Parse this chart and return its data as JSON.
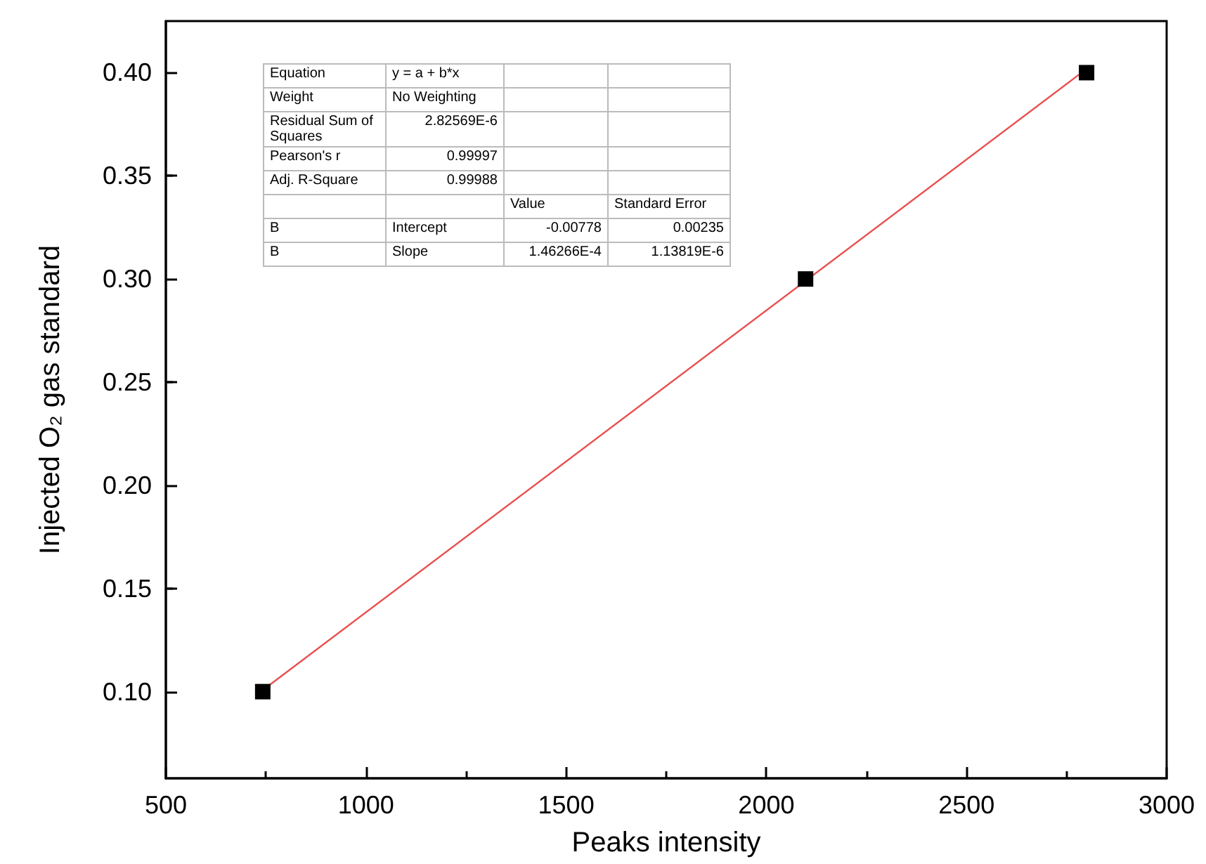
{
  "chart_data": {
    "type": "scatter",
    "xlabel": "Peaks intensity",
    "ylabel": "Injected O₂ gas standard",
    "x": [
      742,
      2098,
      2800
    ],
    "xlim": [
      500,
      3000
    ],
    "xticks": [
      500,
      1000,
      1500,
      2000,
      2500,
      3000
    ],
    "ylim": [
      0.058,
      0.425
    ],
    "yticks": [
      {
        "value": 0.1,
        "label": "0.10"
      },
      {
        "value": 0.15,
        "label": "0.15"
      },
      {
        "value": 0.2,
        "label": "0.20"
      },
      {
        "value": 0.25,
        "label": "0.25"
      },
      {
        "value": 0.3,
        "label": "0.30"
      },
      {
        "value": 0.35,
        "label": "0.35"
      },
      {
        "value": 0.4,
        "label": "0.40"
      }
    ],
    "marker": "square",
    "grid": false,
    "series": [
      {
        "color": "#000000",
        "values": [
          0.1,
          0.3,
          0.4
        ]
      },
      {
        "type": "line",
        "color": "#e8504f",
        "x": [
          742,
          2800
        ],
        "values": [
          0.1007,
          0.4018
        ],
        "marker": "none",
        "line_style": "solid"
      }
    ],
    "annotations": [
      "Equation",
      "y = a + b*x",
      "Weight",
      "No Weighting",
      "Residual Sum of Squares",
      "2.82569E-6",
      "Pearson's r",
      "0.99997",
      "Adj. R-Square",
      "0.99988",
      "Value",
      "Standard Error",
      "B",
      "Intercept",
      "-0.00778",
      "0.00235",
      "B",
      "Slope",
      "1.46266E-4",
      "1.13819E-6"
    ]
  }
}
